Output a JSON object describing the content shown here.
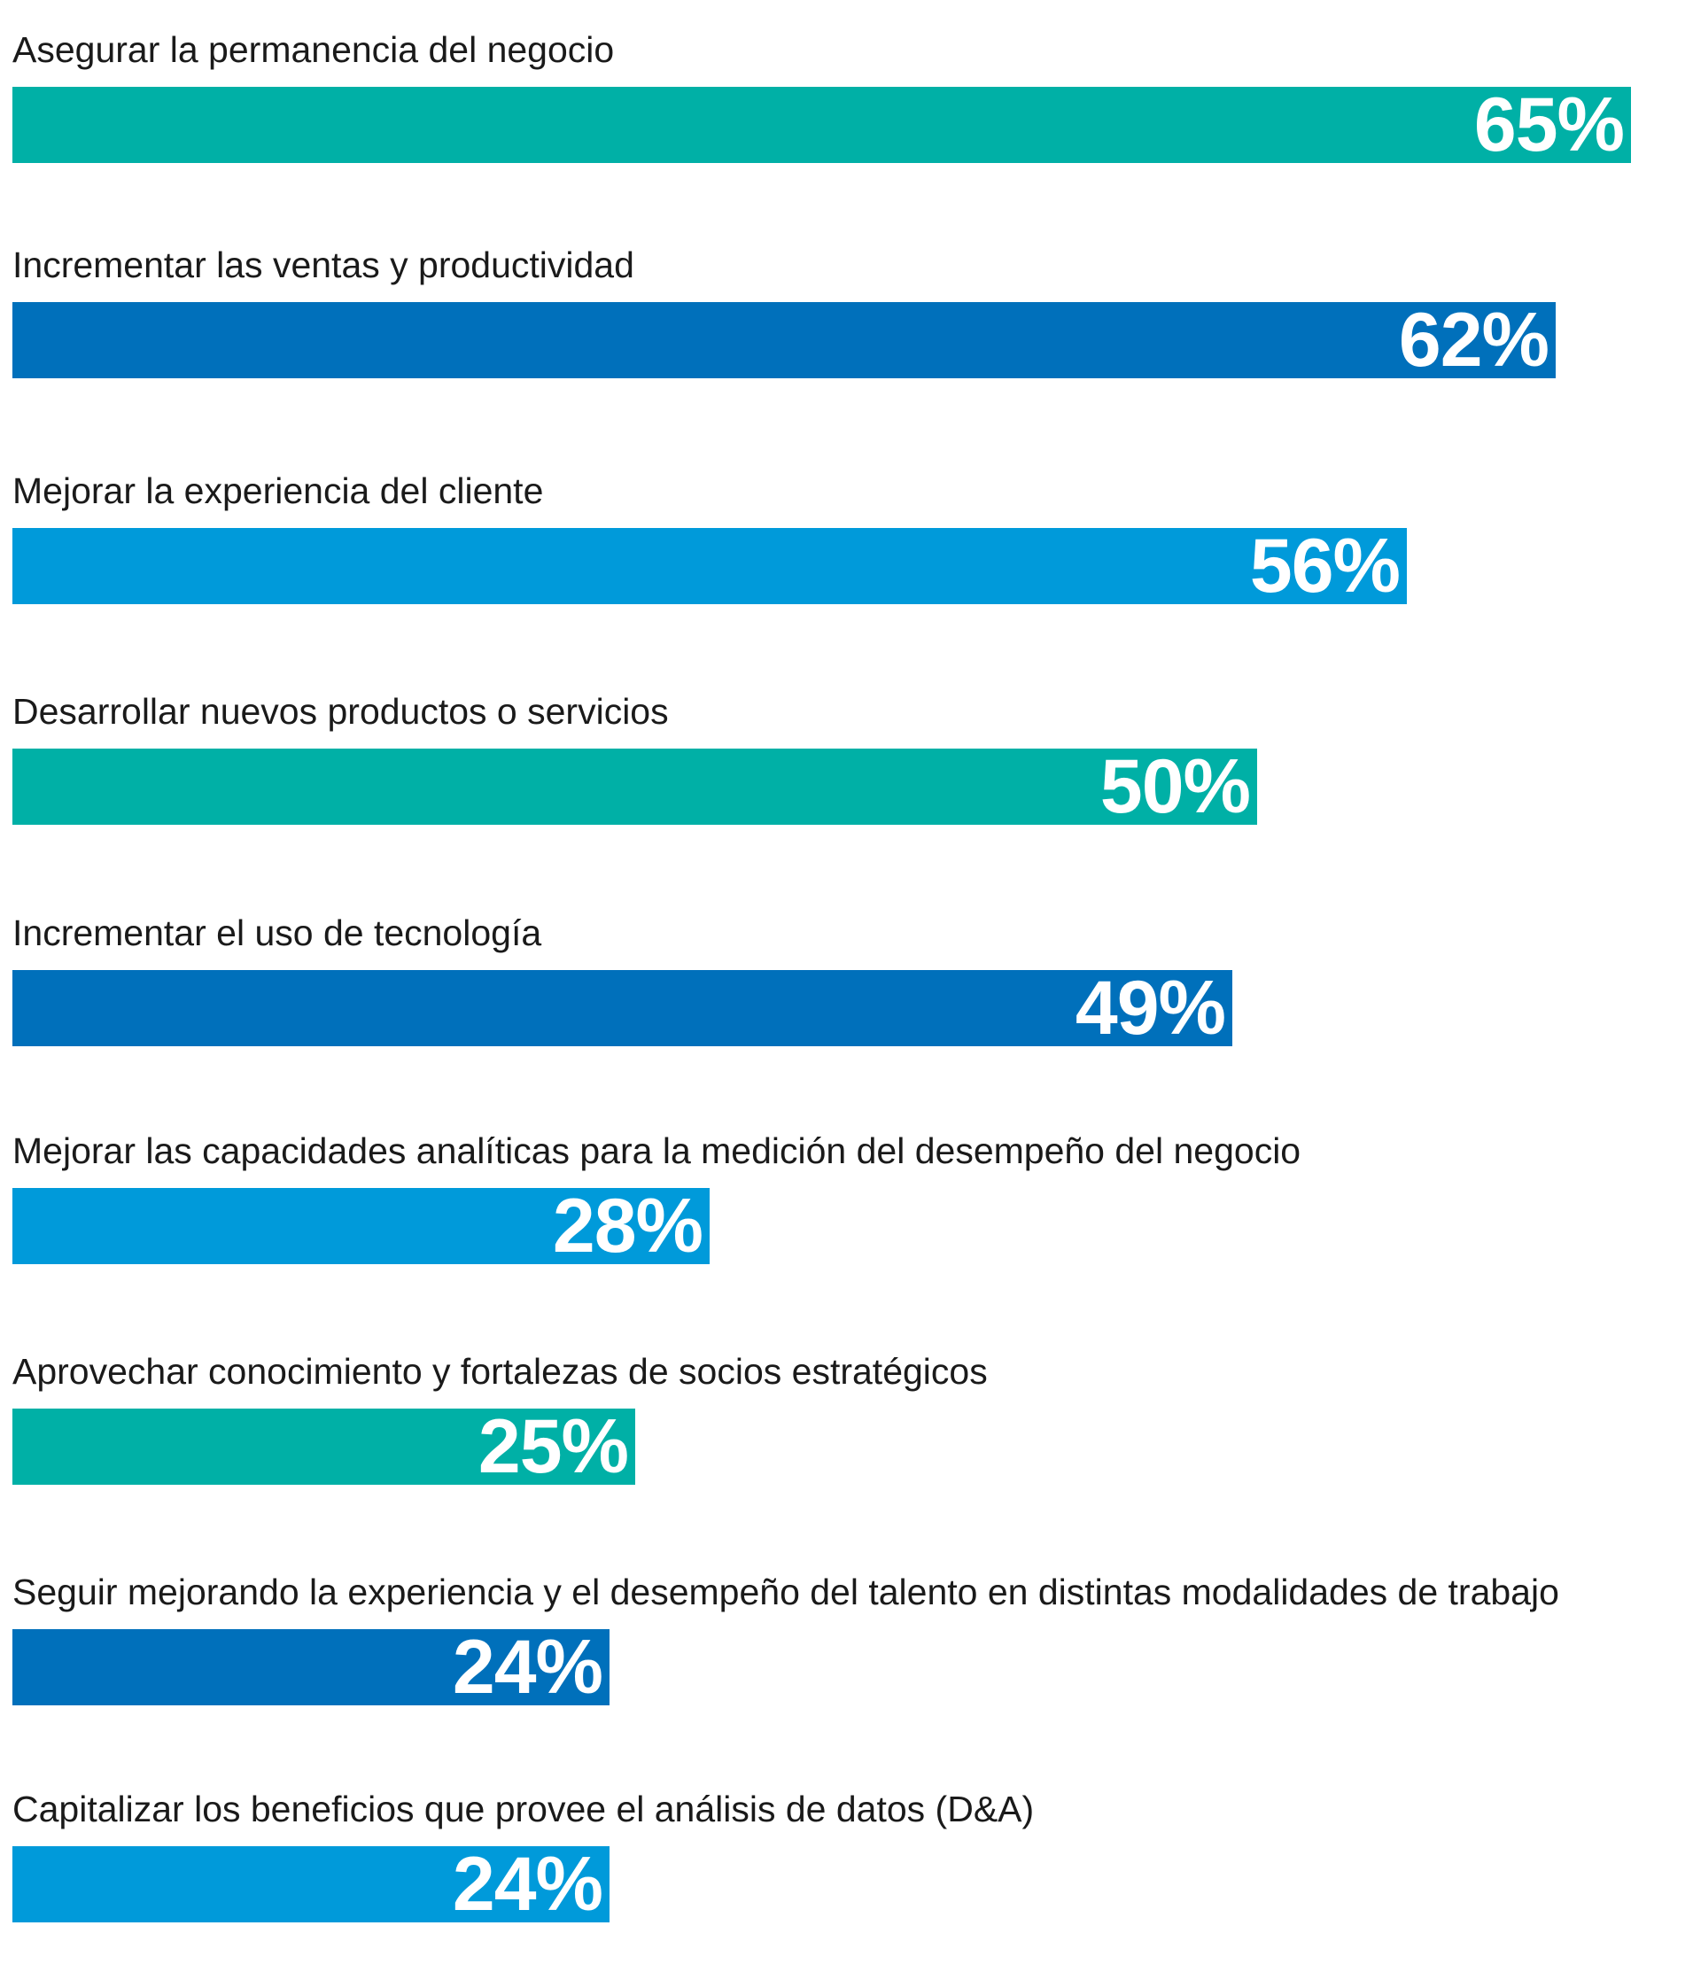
{
  "chart_data": {
    "type": "bar",
    "orientation": "horizontal",
    "categories": [
      "Asegurar la permanencia del negocio",
      "Incrementar las ventas y productividad",
      "Mejorar la experiencia del cliente",
      "Desarrollar nuevos productos o servicios",
      "Incrementar el uso de tecnología",
      "Mejorar las capacidades analíticas para la medición del desempeño del negocio",
      "Aprovechar conocimiento y fortalezas de socios estratégicos",
      "Seguir mejorando la experiencia y el desempeño del talento en distintas modalidades de trabajo",
      "Capitalizar los beneficios que provee el análisis de datos (D&A)"
    ],
    "values": [
      65,
      62,
      56,
      50,
      49,
      28,
      25,
      24,
      24
    ],
    "value_labels": [
      "65%",
      "62%",
      "56%",
      "50%",
      "49%",
      "28%",
      "25%",
      "24%",
      "24%"
    ],
    "bar_colors": [
      "#00b0a6",
      "#0070bb",
      "#009ada",
      "#00b0a6",
      "#0070bb",
      "#009ada",
      "#00b0a6",
      "#0070bb",
      "#009ada"
    ],
    "unit": "%",
    "grid": false,
    "legend": "none",
    "title": "",
    "xlabel": "",
    "ylabel": ""
  }
}
